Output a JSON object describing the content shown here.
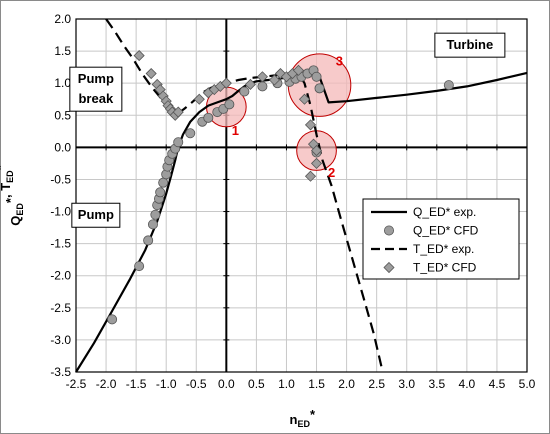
{
  "chart_data": {
    "type": "scatter",
    "xlabel": "n",
    "xlabel_sub": "ED",
    "xlabel_sup": "*",
    "ylabel_parts": [
      {
        "text": "Q",
        "sub": "ED",
        "sup": "*"
      },
      {
        "text": ", T",
        "sub": "ED",
        "sup": "*"
      }
    ],
    "xlim": [
      -2.5,
      5.0
    ],
    "ylim": [
      -3.5,
      2.0
    ],
    "xticks": [
      "-2.5",
      "-2.0",
      "-1.5",
      "-1.0",
      "-0.5",
      "0.0",
      "0.5",
      "1.0",
      "1.5",
      "2.0",
      "2.5",
      "3.0",
      "3.5",
      "4.0",
      "4.5",
      "5.0"
    ],
    "yticks": [
      "2.0",
      "1.5",
      "1.0",
      "0.5",
      "0.0",
      "-0.5",
      "-1.0",
      "-1.5",
      "-2.0",
      "-2.5",
      "-3.0",
      "-3.5"
    ],
    "grid": true,
    "legend_position": "lower-right",
    "regions": [
      {
        "label": "Turbine",
        "x": 4.05,
        "y": 1.53
      },
      {
        "label": "Pump",
        "x": -2.17,
        "y": 1.0
      },
      {
        "label": "break",
        "x": -2.17,
        "y": 0.77
      },
      {
        "label": "Pump",
        "x": -2.17,
        "y": -1.12
      }
    ],
    "series": [
      {
        "name": "Q_ED* exp.",
        "style": "solid-line",
        "x": [
          -2.5,
          -2.2,
          -1.9,
          -1.6,
          -1.35,
          -1.15,
          -1.0,
          -0.92,
          -0.85,
          -0.8,
          -0.72,
          -0.6,
          -0.45,
          -0.3,
          -0.15,
          0.0,
          0.1,
          0.2,
          0.3,
          0.4,
          0.5,
          0.6,
          0.7,
          0.8,
          0.95,
          1.1,
          1.25,
          1.4,
          1.55,
          1.7,
          2.0,
          2.5,
          3.0,
          3.5,
          4.0,
          4.5,
          5.0
        ],
        "y": [
          -3.5,
          -3.05,
          -2.55,
          -2.05,
          -1.6,
          -1.15,
          -0.72,
          -0.45,
          -0.2,
          0.0,
          0.2,
          0.4,
          0.55,
          0.65,
          0.7,
          0.75,
          0.8,
          0.88,
          0.95,
          1.0,
          1.03,
          1.04,
          1.05,
          1.06,
          1.08,
          1.1,
          1.13,
          1.15,
          1.1,
          0.7,
          0.72,
          0.77,
          0.82,
          0.88,
          0.95,
          1.05,
          1.16
        ]
      },
      {
        "name": "Q_ED* CFD",
        "style": "circle",
        "x": [
          -1.9,
          -1.45,
          -1.3,
          -1.22,
          -1.18,
          -1.15,
          -1.12,
          -1.1,
          -1.05,
          -1.0,
          -0.98,
          -0.95,
          -0.9,
          -0.85,
          -0.8,
          -0.6,
          -0.4,
          -0.3,
          -0.15,
          -0.05,
          0.05,
          0.3,
          0.6,
          0.85,
          1.05,
          1.15,
          1.25,
          1.35,
          1.45,
          1.5,
          1.55,
          1.5,
          3.7
        ],
        "y": [
          -2.68,
          -1.85,
          -1.45,
          -1.2,
          -1.05,
          -0.9,
          -0.8,
          -0.7,
          -0.55,
          -0.42,
          -0.3,
          -0.2,
          -0.1,
          -0.02,
          0.08,
          0.22,
          0.4,
          0.46,
          0.55,
          0.6,
          0.67,
          0.87,
          0.95,
          1.0,
          1.02,
          1.07,
          1.1,
          1.15,
          1.2,
          1.1,
          0.92,
          -0.08,
          0.97
        ]
      },
      {
        "name": "T_ED* exp.",
        "style": "dashed-line",
        "x": [
          -2.0,
          -1.85,
          -1.7,
          -1.55,
          -1.4,
          -1.25,
          -1.1,
          -0.95,
          -0.8,
          -0.7,
          -0.55,
          -0.4,
          -0.25,
          -0.1,
          0.0,
          0.2,
          0.4,
          0.6,
          0.8,
          1.0,
          1.2,
          1.3,
          1.4,
          1.5,
          1.6,
          1.75,
          1.9,
          2.1,
          2.3,
          2.45,
          2.6
        ],
        "y": [
          2.0,
          1.8,
          1.58,
          1.38,
          1.15,
          0.95,
          0.78,
          0.63,
          0.53,
          0.6,
          0.72,
          0.85,
          0.93,
          0.98,
          1.0,
          1.05,
          1.08,
          1.1,
          1.12,
          1.14,
          1.15,
          1.0,
          0.65,
          0.2,
          -0.2,
          -0.6,
          -1.1,
          -1.75,
          -2.4,
          -2.9,
          -3.5
        ]
      },
      {
        "name": "T_ED* CFD",
        "style": "diamond",
        "x": [
          -1.45,
          -1.25,
          -1.15,
          -1.1,
          -1.05,
          -1.0,
          -0.97,
          -0.93,
          -0.9,
          -0.85,
          -0.8,
          -0.45,
          -0.3,
          -0.2,
          -0.1,
          0.0,
          0.4,
          0.6,
          0.8,
          0.9,
          1.0,
          1.1,
          1.2,
          1.3,
          1.4,
          1.45,
          1.5,
          1.5,
          1.4
        ],
        "y": [
          1.43,
          1.15,
          0.98,
          0.9,
          0.8,
          0.72,
          0.65,
          0.6,
          0.55,
          0.5,
          0.55,
          0.75,
          0.85,
          0.9,
          0.95,
          1.0,
          0.98,
          1.1,
          1.05,
          1.15,
          1.1,
          1.15,
          1.2,
          0.75,
          0.35,
          0.05,
          -0.05,
          -0.25,
          -0.45
        ]
      }
    ],
    "annotations": [
      {
        "label": "1",
        "cx": 0.0,
        "cy": 0.63,
        "r": 0.33,
        "label_x": 0.15,
        "label_y": 0.27
      },
      {
        "label": "2",
        "cx": 1.5,
        "cy": -0.05,
        "r": 0.33,
        "label_x": 1.75,
        "label_y": -0.38
      },
      {
        "label": "3",
        "cx": 1.55,
        "cy": 0.97,
        "r": 0.52,
        "label_x": 1.88,
        "label_y": 1.35
      }
    ],
    "legend": [
      {
        "label": "Q_ED* exp.",
        "style": "solid-line"
      },
      {
        "label": "Q_ED* CFD",
        "style": "circle"
      },
      {
        "label": "T_ED* exp.",
        "style": "dashed-line"
      },
      {
        "label": "T_ED* CFD",
        "style": "diamond"
      }
    ]
  },
  "colors": {
    "line": "#000000",
    "marker_fill": "#9d9d9d",
    "marker_stroke": "#555555",
    "highlight_fill": "#f4b8b8",
    "highlight_stroke": "#c00000",
    "highlight_label": "#e00000",
    "grid": "#c8c8c8"
  }
}
